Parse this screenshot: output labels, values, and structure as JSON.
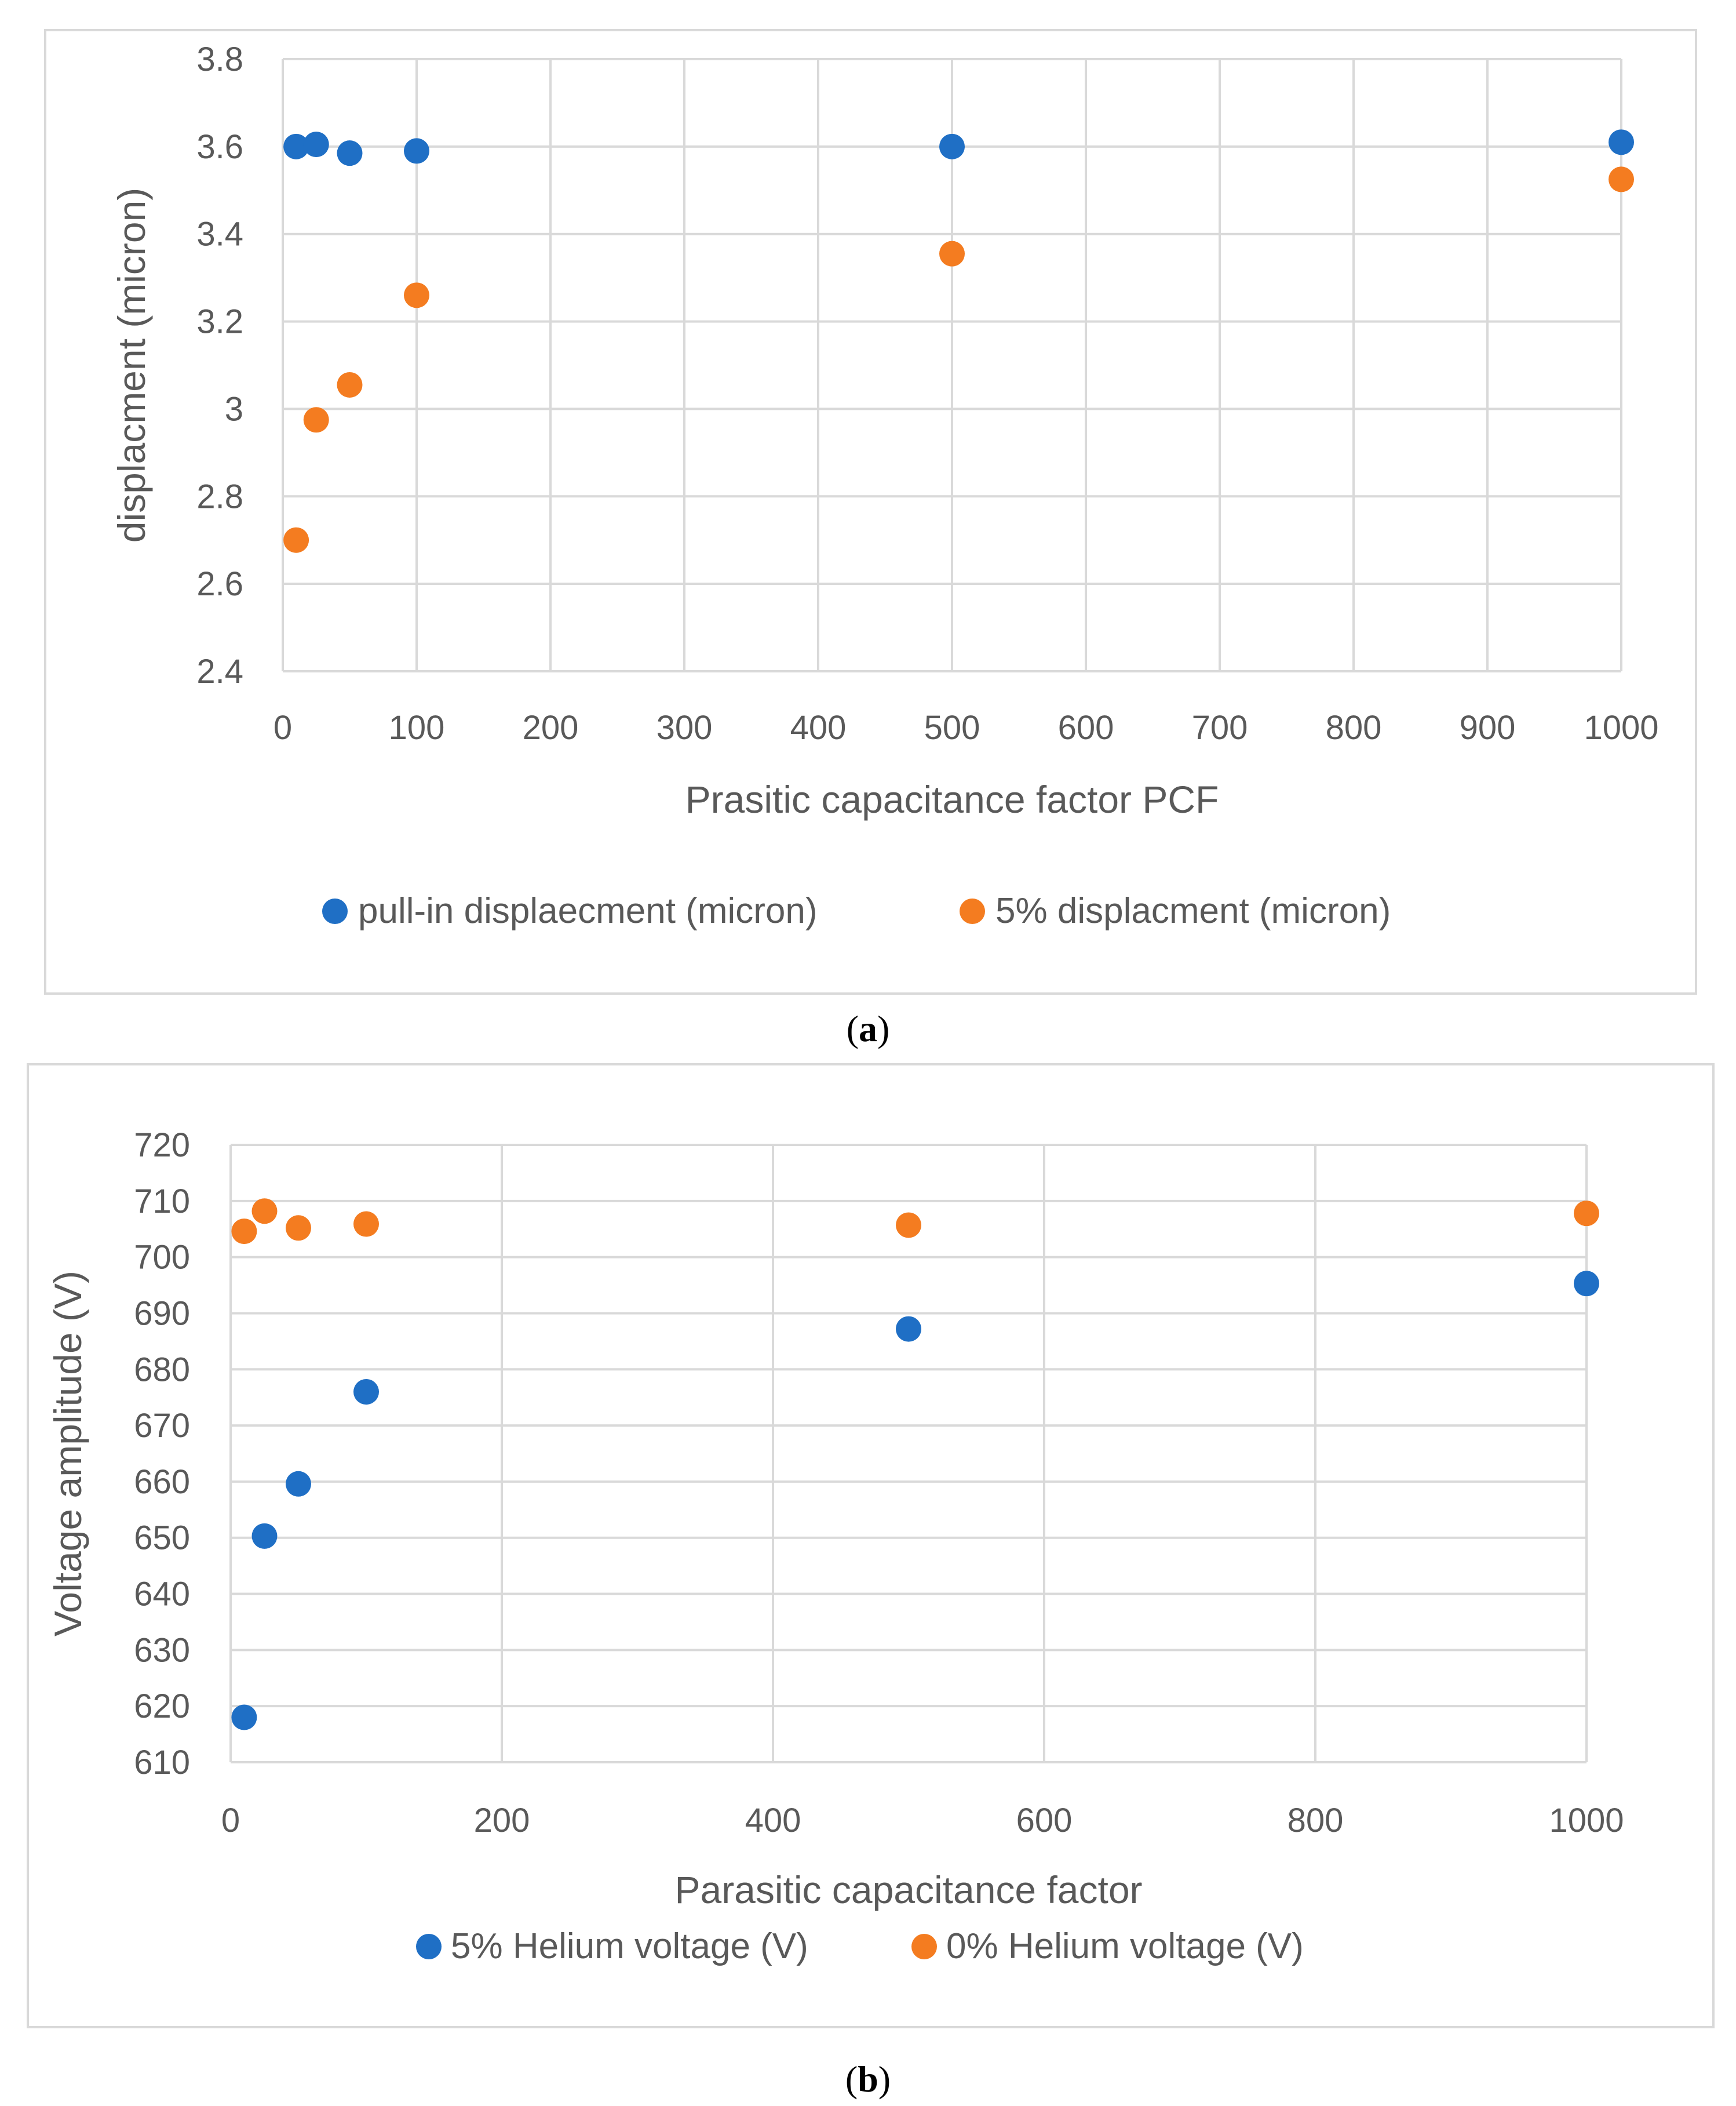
{
  "captions": {
    "a": "a",
    "b": "b"
  },
  "chart_data": [
    {
      "id": "a",
      "type": "scatter",
      "title": "",
      "xlabel": "Prasitic capacitance factor PCF",
      "ylabel": "displacment (micron)",
      "xlim": [
        0,
        1000
      ],
      "ylim": [
        2.4,
        3.8
      ],
      "xticks": [
        0,
        100,
        200,
        300,
        400,
        500,
        600,
        700,
        800,
        900,
        1000
      ],
      "yticks": [
        2.4,
        2.6,
        2.8,
        3.0,
        3.2,
        3.4,
        3.6,
        3.8
      ],
      "xtick_labels": [
        "0",
        "100",
        "200",
        "300",
        "400",
        "500",
        "600",
        "700",
        "800",
        "900",
        "1000"
      ],
      "ytick_labels": [
        "2.4",
        "2.6",
        "2.8",
        "3",
        "3.2",
        "3.4",
        "3.6",
        "3.8"
      ],
      "legend_position": "bottom",
      "series": [
        {
          "name": "pull-in displaecment (micron)",
          "color": "#1f6fc5",
          "x": [
            10,
            25,
            50,
            100,
            500,
            1000
          ],
          "y": [
            3.6,
            3.605,
            3.585,
            3.59,
            3.6,
            3.61
          ]
        },
        {
          "name": "5% displacment (micron)",
          "color": "#f47c20",
          "x": [
            10,
            25,
            50,
            100,
            500,
            1000
          ],
          "y": [
            2.7,
            2.975,
            3.055,
            3.26,
            3.355,
            3.525
          ]
        }
      ]
    },
    {
      "id": "b",
      "type": "scatter",
      "title": "",
      "xlabel": "Parasitic capacitance factor",
      "ylabel": "Voltage amplitude (V)",
      "xlim": [
        0,
        1000
      ],
      "ylim": [
        610,
        720
      ],
      "xticks": [
        0,
        200,
        400,
        600,
        800,
        1000
      ],
      "yticks": [
        610,
        620,
        630,
        640,
        650,
        660,
        670,
        680,
        690,
        700,
        710,
        720
      ],
      "xtick_labels": [
        "0",
        "200",
        "400",
        "600",
        "800",
        "1000"
      ],
      "ytick_labels": [
        "610",
        "620",
        "630",
        "640",
        "650",
        "660",
        "670",
        "680",
        "690",
        "700",
        "710",
        "720"
      ],
      "legend_position": "bottom",
      "series": [
        {
          "name": "5% Helium voltage (V)",
          "color": "#1f6fc5",
          "x": [
            10,
            25,
            50,
            100,
            500,
            1000
          ],
          "y": [
            618,
            650.3,
            659.6,
            676,
            687.2,
            695.3
          ]
        },
        {
          "name": "0% Helium voltage (V)",
          "color": "#f47c20",
          "x": [
            10,
            25,
            50,
            100,
            500,
            1000
          ],
          "y": [
            704.6,
            708.2,
            705.2,
            705.9,
            705.7,
            707.8
          ]
        }
      ]
    }
  ]
}
